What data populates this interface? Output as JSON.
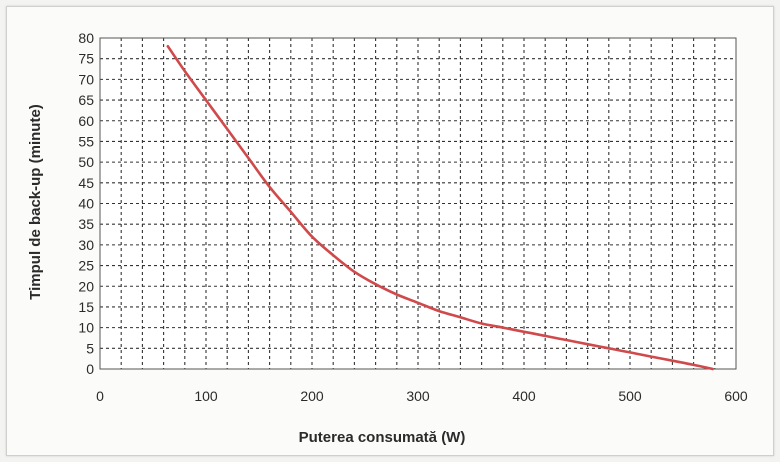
{
  "chart_data": {
    "type": "line",
    "title": "",
    "xlabel": "Puterea consumată (W)",
    "ylabel": "Timpul de back-up (minute)",
    "xlim": [
      0,
      600
    ],
    "ylim": [
      0,
      80
    ],
    "x_ticks": [
      0,
      100,
      200,
      300,
      400,
      500,
      600
    ],
    "y_ticks": [
      0,
      5,
      10,
      15,
      20,
      25,
      30,
      35,
      40,
      45,
      50,
      55,
      60,
      65,
      70,
      75,
      80
    ],
    "x_minor_step": 20,
    "grid": true,
    "legend": false,
    "series": [
      {
        "color": "#d0494b",
        "x": [
          64,
          80,
          100,
          120,
          140,
          160,
          180,
          200,
          220,
          240,
          260,
          280,
          300,
          320,
          340,
          360,
          380,
          400,
          420,
          440,
          460,
          480,
          500,
          520,
          540,
          560,
          578
        ],
        "y": [
          78,
          72,
          65,
          58,
          51,
          44,
          38,
          32,
          27.5,
          23.5,
          20.5,
          18,
          16,
          14,
          12.5,
          11,
          10,
          9,
          8,
          7,
          6,
          5,
          4,
          3,
          2,
          1,
          0
        ]
      }
    ]
  }
}
